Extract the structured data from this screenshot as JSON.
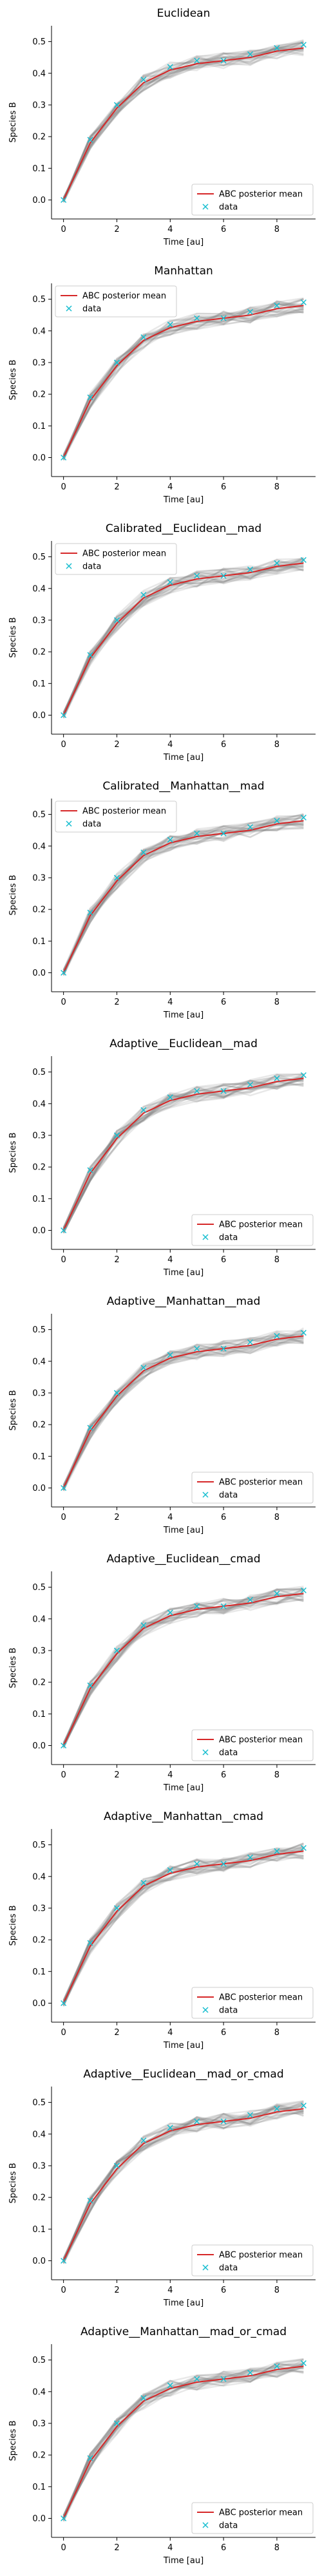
{
  "chart_data": {
    "type": "line",
    "xlabel": "Time [au]",
    "ylabel": "Species B",
    "xlim": [
      -0.45,
      9.45
    ],
    "ylim": [
      -0.06,
      0.55
    ],
    "x_ticks": [
      0,
      2,
      4,
      6,
      8
    ],
    "y_ticks": [
      0.0,
      0.1,
      0.2,
      0.3,
      0.4,
      0.5
    ],
    "grid": false,
    "colors": {
      "posterior_mean": "#d62728",
      "data": "#17becf",
      "samples": "#7f7f7f"
    },
    "x": [
      0,
      1,
      2,
      3,
      4,
      5,
      6,
      7,
      8,
      9
    ],
    "series": [
      {
        "name": "ABC posterior mean",
        "style": "line",
        "values": [
          0.0,
          0.18,
          0.29,
          0.37,
          0.41,
          0.43,
          0.44,
          0.45,
          0.47,
          0.48
        ]
      },
      {
        "name": "data",
        "style": "marker-x",
        "values": [
          0.0,
          0.19,
          0.3,
          0.38,
          0.42,
          0.44,
          0.44,
          0.46,
          0.48,
          0.49
        ]
      }
    ],
    "panels": [
      {
        "title": "Euclidean",
        "legend": "bottom-right"
      },
      {
        "title": "Manhattan",
        "legend": "top-left"
      },
      {
        "title": "Calibrated__Euclidean__mad",
        "legend": "top-left"
      },
      {
        "title": "Calibrated__Manhattan__mad",
        "legend": "top-left"
      },
      {
        "title": "Adaptive__Euclidean__mad",
        "legend": "bottom-right"
      },
      {
        "title": "Adaptive__Manhattan__mad",
        "legend": "bottom-right"
      },
      {
        "title": "Adaptive__Euclidean__cmad",
        "legend": "bottom-right"
      },
      {
        "title": "Adaptive__Manhattan__cmad",
        "legend": "bottom-right"
      },
      {
        "title": "Adaptive__Euclidean__mad_or_cmad",
        "legend": "bottom-right"
      },
      {
        "title": "Adaptive__Manhattan__mad_or_cmad",
        "legend": "bottom-right"
      }
    ]
  }
}
